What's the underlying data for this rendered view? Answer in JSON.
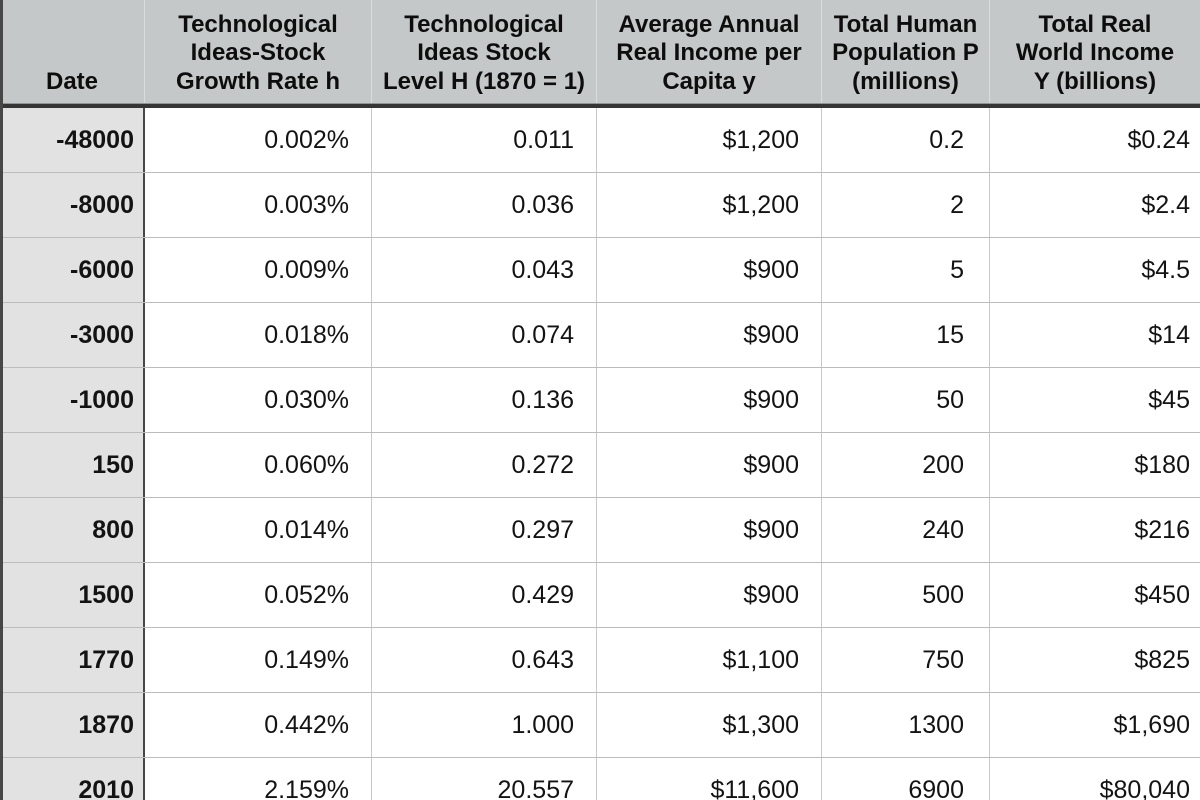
{
  "colors": {
    "header_bg": "#c5c8c8",
    "row_label_bg": "#e2e2e2",
    "grid_dark": "#474747",
    "grid_light": "#c9c9c9"
  },
  "header": {
    "columns_display": [
      "Date",
      "Technological\nIdeas-Stock\nGrowth Rate h",
      "Technological\nIdeas Stock\nLevel H (1870 = 1)",
      "Average Annual\nReal Income per\nCapita y",
      "Total Human\nPopulation P\n(millions)",
      "Total Real\nWorld Income\nY (billions)"
    ]
  },
  "chart_data": {
    "type": "table",
    "columns": [
      "Date",
      "Technological Ideas-Stock Growth Rate h",
      "Technological Ideas Stock Level H (1870 = 1)",
      "Average Annual Real Income per Capita y",
      "Total Human Population P (millions)",
      "Total Real World Income Y (billions)"
    ],
    "rows": [
      [
        "-48000",
        "0.002%",
        "0.011",
        "$1,200",
        "0.2",
        "$0.24"
      ],
      [
        "-8000",
        "0.003%",
        "0.036",
        "$1,200",
        "2",
        "$2.4"
      ],
      [
        "-6000",
        "0.009%",
        "0.043",
        "$900",
        "5",
        "$4.5"
      ],
      [
        "-3000",
        "0.018%",
        "0.074",
        "$900",
        "15",
        "$14"
      ],
      [
        "-1000",
        "0.030%",
        "0.136",
        "$900",
        "50",
        "$45"
      ],
      [
        "150",
        "0.060%",
        "0.272",
        "$900",
        "200",
        "$180"
      ],
      [
        "800",
        "0.014%",
        "0.297",
        "$900",
        "240",
        "$216"
      ],
      [
        "1500",
        "0.052%",
        "0.429",
        "$900",
        "500",
        "$450"
      ],
      [
        "1770",
        "0.149%",
        "0.643",
        "$1,100",
        "750",
        "$825"
      ],
      [
        "1870",
        "0.442%",
        "1.000",
        "$1,300",
        "1300",
        "$1,690"
      ],
      [
        "2010",
        "2.159%",
        "20.557",
        "$11,600",
        "6900",
        "$80,040"
      ]
    ]
  }
}
